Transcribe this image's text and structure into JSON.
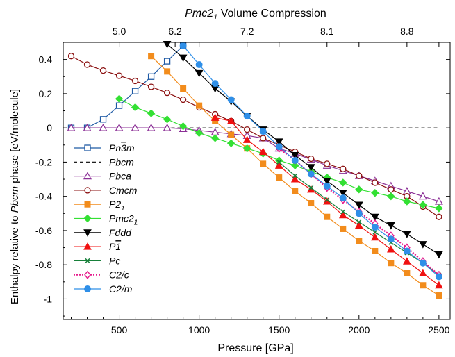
{
  "chart_data": {
    "type": "line",
    "xlabel": "Pressure [GPa]",
    "ylabel_parts": [
      "Enthalpy relative to ",
      "Pbcm",
      " phase [eV/molecule]"
    ],
    "top_axis_label": "Pmc2₁ Volume Compression",
    "top_axis_label_parts": [
      "Pmc2",
      "1",
      " Volume Compression"
    ],
    "xlim": [
      150,
      2570
    ],
    "ylim": [
      -1.12,
      0.5
    ],
    "x_ticks": [
      500,
      1000,
      1500,
      2000,
      2500
    ],
    "x_tick_labels": [
      "500",
      "1000",
      "1500",
      "2000",
      "2500"
    ],
    "y_ticks": [
      0.4,
      0.2,
      0,
      -0.2,
      -0.4,
      -0.6,
      -0.8,
      -1
    ],
    "y_tick_labels": [
      "0.4",
      "0.2",
      "0",
      "-0.2",
      "-0.4",
      "-0.6",
      "-0.8",
      "-1"
    ],
    "top_ticks": [
      {
        "x": 500,
        "label": "5.0"
      },
      {
        "x": 850,
        "label": "6.2"
      },
      {
        "x": 1300,
        "label": "7.2"
      },
      {
        "x": 1800,
        "label": "8.1"
      },
      {
        "x": 2300,
        "label": "8.8"
      }
    ],
    "legend_placement": "lower-left",
    "series": [
      {
        "name": "Pn3̄m",
        "name_parts": [
          "Pn",
          "3",
          "m"
        ],
        "overbar": 1,
        "color": "#1f5aa5",
        "marker": "open-square",
        "dash": "",
        "x": [
          200,
          300,
          400,
          500,
          600,
          700,
          800,
          900
        ],
        "y": [
          0.0,
          0.0,
          0.05,
          0.13,
          0.215,
          0.3,
          0.39,
          0.48
        ]
      },
      {
        "name": "Pbcm",
        "name_parts": [
          "Pbcm"
        ],
        "color": "#000000",
        "marker": "none",
        "dash": "5,4",
        "x": [
          200,
          2500
        ],
        "y": [
          0.0,
          0.0
        ]
      },
      {
        "name": "Pbca",
        "name_parts": [
          "Pbca"
        ],
        "color": "#8b2f96",
        "marker": "open-triangle",
        "dash": "",
        "x": [
          200,
          300,
          400,
          500,
          600,
          700,
          800,
          900,
          1000,
          1100,
          1200,
          1300,
          1400,
          1500,
          1600,
          1700,
          1800,
          1900,
          2000,
          2100,
          2200,
          2300,
          2400,
          2500
        ],
        "y": [
          0.0,
          0.0,
          0.0,
          0.0,
          0.0,
          0.0,
          0.0,
          -0.005,
          -0.015,
          -0.025,
          -0.035,
          -0.045,
          -0.06,
          -0.12,
          -0.15,
          -0.185,
          -0.22,
          -0.25,
          -0.28,
          -0.31,
          -0.34,
          -0.37,
          -0.4,
          -0.43
        ]
      },
      {
        "name": "Cmcm",
        "name_parts": [
          "Cmcm"
        ],
        "color": "#8b1010",
        "marker": "open-circle",
        "dash": "",
        "x": [
          200,
          300,
          400,
          500,
          600,
          700,
          800,
          900,
          1000,
          1100,
          1200,
          1300,
          1400,
          1500,
          1600,
          1700,
          1800,
          1900,
          2000,
          2100,
          2200,
          2300,
          2400,
          2500
        ],
        "y": [
          0.42,
          0.37,
          0.335,
          0.305,
          0.275,
          0.24,
          0.205,
          0.165,
          0.12,
          0.08,
          0.04,
          -0.01,
          -0.06,
          -0.1,
          -0.14,
          -0.18,
          -0.21,
          -0.24,
          -0.28,
          -0.32,
          -0.36,
          -0.4,
          -0.46,
          -0.52
        ]
      },
      {
        "name": "P2₁",
        "name_parts": [
          "P2",
          "1"
        ],
        "sub": 1,
        "color": "#f28c1c",
        "marker": "filled-square",
        "dash": "",
        "x": [
          700,
          800,
          900,
          1000,
          1100,
          1200,
          1300,
          1400,
          1500,
          1600,
          1700,
          1800,
          1900,
          2000,
          2100,
          2200,
          2300,
          2400,
          2500
        ],
        "y": [
          0.42,
          0.33,
          0.23,
          0.13,
          0.04,
          -0.04,
          -0.12,
          -0.21,
          -0.29,
          -0.37,
          -0.44,
          -0.52,
          -0.59,
          -0.66,
          -0.72,
          -0.79,
          -0.85,
          -0.92,
          -0.98
        ]
      },
      {
        "name": "Pmc2₁",
        "name_parts": [
          "Pmc2",
          "1"
        ],
        "sub": 1,
        "color": "#33e033",
        "marker": "filled-diamond",
        "dash": "",
        "x": [
          500,
          600,
          700,
          800,
          900,
          1000,
          1100,
          1200,
          1300,
          1400,
          1500,
          1600,
          1700,
          1800,
          1900,
          2000,
          2100,
          2200,
          2300,
          2400,
          2500
        ],
        "y": [
          0.17,
          0.12,
          0.085,
          0.05,
          0.01,
          -0.03,
          -0.06,
          -0.09,
          -0.12,
          -0.15,
          -0.19,
          -0.22,
          -0.255,
          -0.29,
          -0.32,
          -0.36,
          -0.38,
          -0.4,
          -0.43,
          -0.45,
          -0.47
        ]
      },
      {
        "name": "Fddd",
        "name_parts": [
          "Fddd"
        ],
        "color": "#000000",
        "marker": "filled-down-triangle",
        "dash": "",
        "x": [
          800,
          900,
          1000,
          1100,
          1200,
          1300,
          1400,
          1500,
          1600,
          1700,
          1800,
          1900,
          2000,
          2100,
          2200,
          2300,
          2400,
          2500
        ],
        "y": [
          0.49,
          0.41,
          0.32,
          0.23,
          0.155,
          0.07,
          -0.01,
          -0.08,
          -0.16,
          -0.23,
          -0.31,
          -0.38,
          -0.45,
          -0.52,
          -0.57,
          -0.62,
          -0.68,
          -0.74
        ]
      },
      {
        "name": "P1̄",
        "name_parts": [
          "P",
          "1",
          ""
        ],
        "overbar": 1,
        "color": "#f01010",
        "marker": "filled-triangle",
        "dash": "",
        "x": [
          1100,
          1200,
          1300,
          1400,
          1500,
          1600,
          1700,
          1800,
          1900,
          2000,
          2100,
          2200,
          2300,
          2400,
          2500
        ],
        "y": [
          0.06,
          0.04,
          -0.07,
          -0.14,
          -0.22,
          -0.3,
          -0.36,
          -0.43,
          -0.51,
          -0.57,
          -0.64,
          -0.71,
          -0.78,
          -0.85,
          -0.92
        ]
      },
      {
        "name": "Pc",
        "name_parts": [
          "Pc"
        ],
        "color": "#17803a",
        "marker": "x",
        "dash": "",
        "x": [
          1500,
          1600,
          1700,
          1800,
          1900,
          2000,
          2100,
          2200,
          2300,
          2400,
          2500
        ],
        "y": [
          -0.2,
          -0.28,
          -0.35,
          -0.42,
          -0.49,
          -0.55,
          -0.61,
          -0.67,
          -0.73,
          -0.79,
          -0.86
        ]
      },
      {
        "name": "C2/c",
        "name_parts": [
          "C2/c"
        ],
        "color": "#e6198c",
        "marker": "open-diamond",
        "dash": "2,2",
        "x": [
          1500,
          1600,
          1700,
          1800,
          1900,
          2000,
          2100,
          2200,
          2300,
          2400,
          2500
        ],
        "y": [
          -0.12,
          -0.19,
          -0.27,
          -0.35,
          -0.42,
          -0.49,
          -0.56,
          -0.63,
          -0.7,
          -0.78,
          -0.86
        ]
      },
      {
        "name": "C2/m",
        "name_parts": [
          "C2/m"
        ],
        "color": "#2f8fe8",
        "marker": "filled-circle",
        "dash": "",
        "x": [
          900,
          1000,
          1100,
          1200,
          1300,
          1400,
          1500,
          1600,
          1700,
          1800,
          1900,
          2000,
          2100,
          2200,
          2300,
          2400,
          2500
        ],
        "y": [
          0.48,
          0.37,
          0.26,
          0.165,
          0.07,
          -0.02,
          -0.11,
          -0.19,
          -0.27,
          -0.34,
          -0.41,
          -0.5,
          -0.58,
          -0.65,
          -0.72,
          -0.79,
          -0.87
        ]
      }
    ]
  }
}
